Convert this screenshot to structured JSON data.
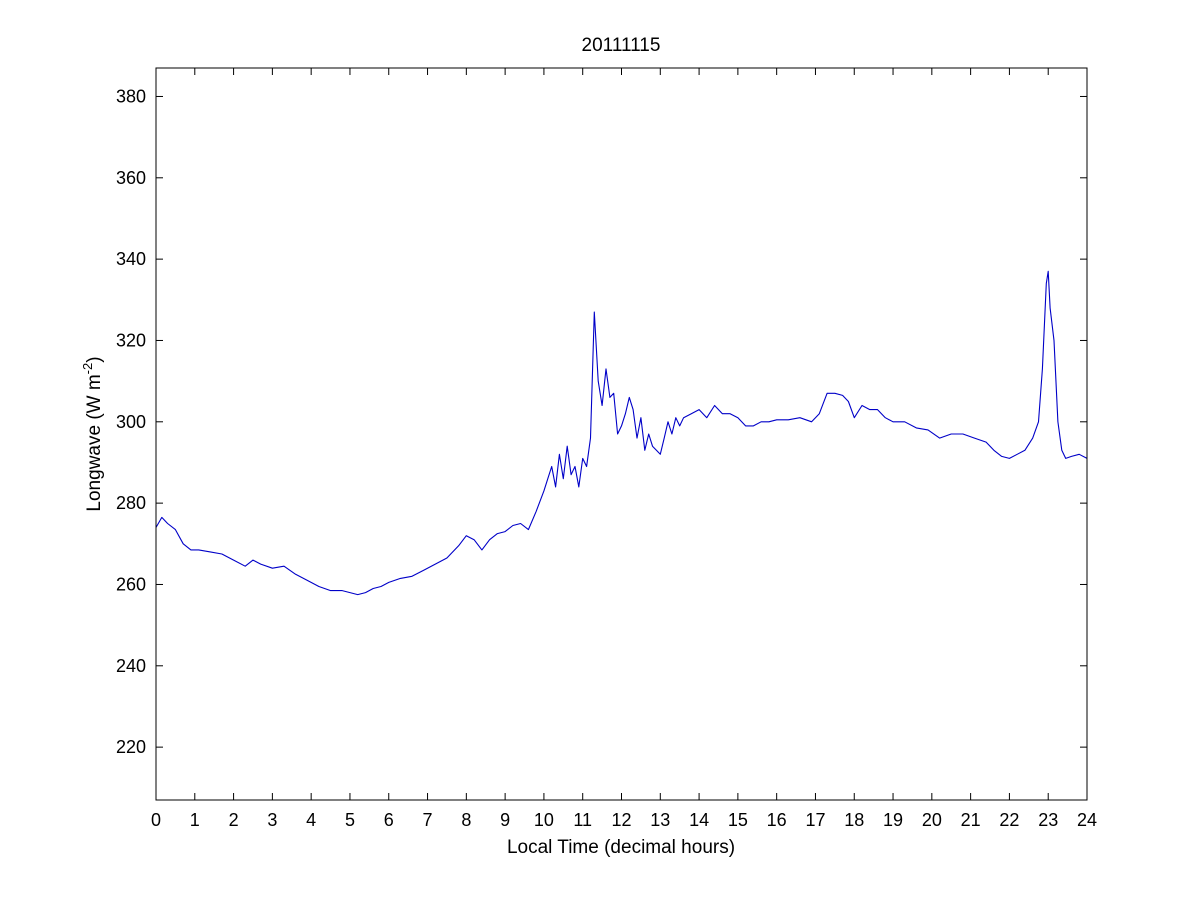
{
  "chart_data": {
    "type": "line",
    "title": "20111115",
    "xlabel": "Local Time (decimal hours)",
    "ylabel": {
      "base": "Longwave (W m",
      "superscript": "-2",
      "close": ")"
    },
    "xlim": [
      0,
      24
    ],
    "ylim": [
      207,
      387
    ],
    "xticks": [
      0,
      1,
      2,
      3,
      4,
      5,
      6,
      7,
      8,
      9,
      10,
      11,
      12,
      13,
      14,
      15,
      16,
      17,
      18,
      19,
      20,
      21,
      22,
      23,
      24
    ],
    "yticks": [
      220,
      240,
      260,
      280,
      300,
      320,
      340,
      360,
      380
    ],
    "grid": false,
    "legend": "none",
    "line_color": "#0000c8",
    "series": [
      {
        "x": [
          0,
          0.15,
          0.3,
          0.5,
          0.7,
          0.9,
          1.1,
          1.4,
          1.7,
          2.0,
          2.3,
          2.5,
          2.7,
          3.0,
          3.3,
          3.6,
          3.9,
          4.2,
          4.5,
          4.8,
          5.0,
          5.2,
          5.4,
          5.6,
          5.8,
          6.0,
          6.3,
          6.6,
          6.9,
          7.2,
          7.5,
          7.8,
          8.0,
          8.2,
          8.4,
          8.6,
          8.8,
          9.0,
          9.2,
          9.4,
          9.6,
          9.8,
          10.0,
          10.1,
          10.2,
          10.3,
          10.4,
          10.5,
          10.6,
          10.7,
          10.8,
          10.9,
          11.0,
          11.1,
          11.2,
          11.3,
          11.4,
          11.5,
          11.6,
          11.7,
          11.8,
          11.9,
          12.0,
          12.1,
          12.2,
          12.3,
          12.4,
          12.5,
          12.6,
          12.7,
          12.8,
          12.9,
          13.0,
          13.1,
          13.2,
          13.3,
          13.4,
          13.5,
          13.6,
          13.8,
          14.0,
          14.2,
          14.4,
          14.6,
          14.8,
          15.0,
          15.2,
          15.4,
          15.6,
          15.8,
          16.0,
          16.3,
          16.6,
          16.9,
          17.1,
          17.3,
          17.5,
          17.7,
          17.85,
          18.0,
          18.2,
          18.4,
          18.6,
          18.8,
          19.0,
          19.3,
          19.6,
          19.9,
          20.2,
          20.5,
          20.8,
          21.1,
          21.4,
          21.6,
          21.8,
          22.0,
          22.2,
          22.4,
          22.6,
          22.75,
          22.85,
          22.95,
          23.0,
          23.05,
          23.15,
          23.25,
          23.35,
          23.45,
          23.6,
          23.8,
          24.0
        ],
        "y": [
          274,
          276.5,
          275,
          273.5,
          270,
          268.5,
          268.5,
          268,
          267.5,
          266,
          264.5,
          266,
          265,
          264,
          264.5,
          262.5,
          261,
          259.5,
          258.5,
          258.5,
          258,
          257.5,
          258,
          259,
          259.5,
          260.5,
          261.5,
          262,
          263.5,
          265,
          266.5,
          269.5,
          272,
          271,
          268.5,
          271,
          272.5,
          273,
          274.5,
          275,
          273.5,
          278,
          283,
          286,
          289,
          284,
          292,
          286,
          294,
          287,
          289,
          284,
          291,
          289,
          296,
          327,
          310,
          304,
          313,
          306,
          307,
          297,
          299,
          302,
          306,
          303,
          296,
          301,
          293,
          297,
          294,
          293,
          292,
          296,
          300,
          297,
          301,
          299,
          301,
          302,
          303,
          301,
          304,
          302,
          302,
          301,
          299,
          299,
          300,
          300,
          300.5,
          300.5,
          301,
          300,
          302,
          307,
          307,
          306.5,
          305,
          301,
          304,
          303,
          303,
          301,
          300,
          300,
          298.5,
          298,
          296,
          297,
          297,
          296,
          295,
          293,
          291.5,
          291,
          292,
          293,
          296,
          300,
          313,
          334,
          337,
          328,
          320,
          300,
          293,
          291,
          291.5,
          292,
          291
        ]
      }
    ]
  }
}
